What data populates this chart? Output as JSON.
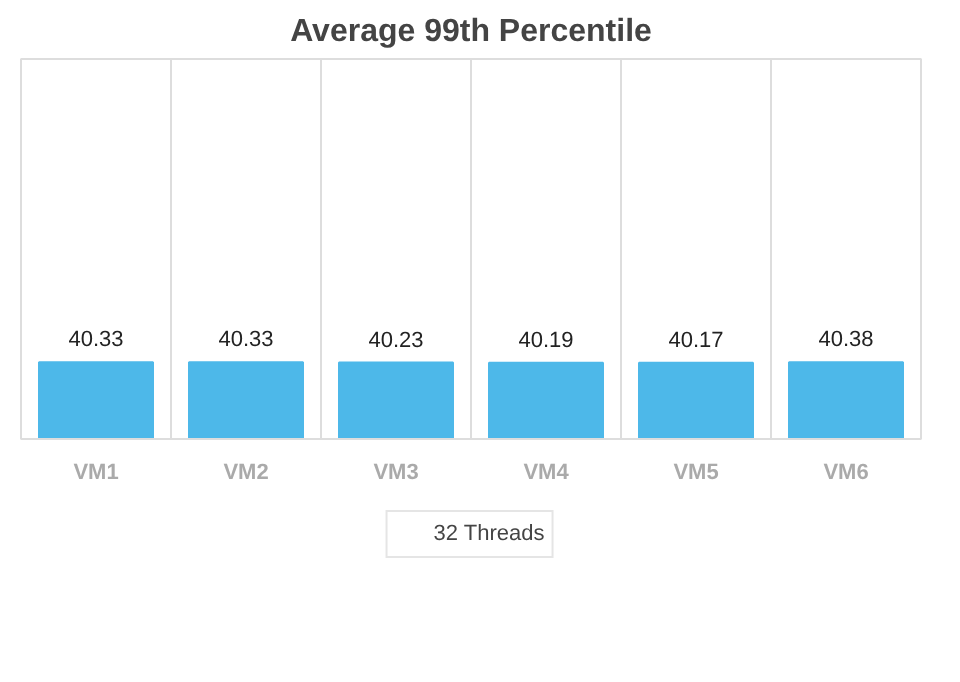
{
  "chart_data": {
    "type": "bar",
    "title": "Average 99th Percentile",
    "categories": [
      "VM1",
      "VM2",
      "VM3",
      "VM4",
      "VM5",
      "VM6"
    ],
    "series": [
      {
        "name": "32 Threads",
        "color": "#4db8e9",
        "values": [
          40.33,
          40.33,
          40.23,
          40.19,
          40.17,
          40.38
        ]
      }
    ],
    "ylim": [
      0,
      200
    ],
    "tick_labels": "x",
    "grid": "x",
    "legend": "bottom",
    "data_labels": true
  }
}
